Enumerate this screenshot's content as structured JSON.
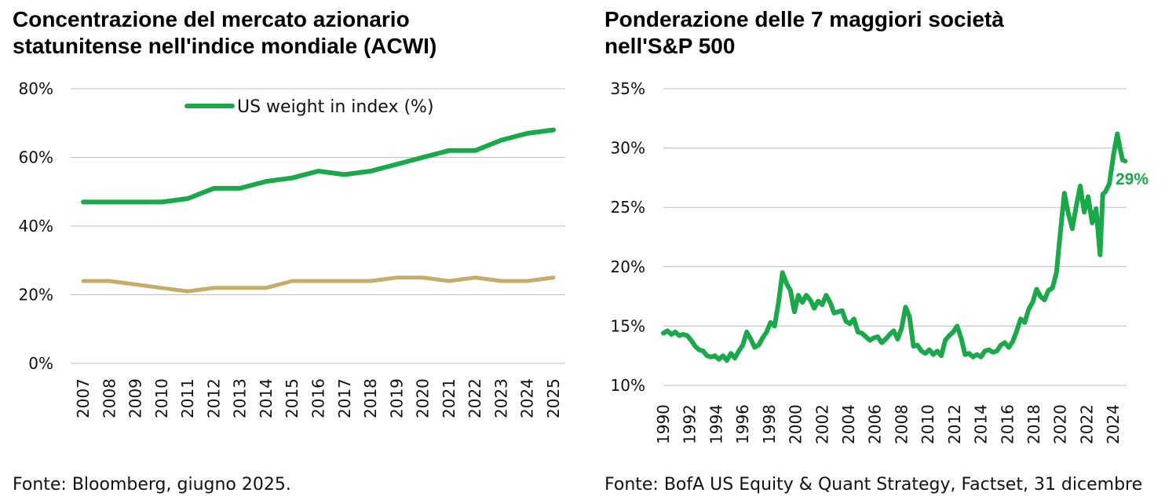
{
  "left": {
    "title_line1": "Concentrazione del mercato azionario",
    "title_line2": "statunitense nell'indice mondiale (ACWI)",
    "source": "Fonte: Bloomberg, giugno 2025."
  },
  "right": {
    "title_line1": "Ponderazione delle 7 maggiori società",
    "title_line2": "nell'S&P 500",
    "source": "Fonte: BofA US Equity & Quant Strategy, Factset, 31 dicembre"
  },
  "colors": {
    "green": "#1aa84a",
    "tan": "#c4ad6a",
    "grid": "#bfbfbf"
  },
  "chart_data": [
    {
      "type": "line",
      "title": "Concentrazione del mercato azionario statunitense nell'indice mondiale (ACWI)",
      "categories": [
        "2007",
        "2008",
        "2009",
        "2010",
        "2011",
        "2012",
        "2013",
        "2014",
        "2015",
        "2016",
        "2017",
        "2018",
        "2019",
        "2020",
        "2021",
        "2022",
        "2023",
        "2024",
        "2025"
      ],
      "yticks": [
        "0%",
        "20%",
        "40%",
        "60%",
        "80%"
      ],
      "ylim": [
        0,
        80
      ],
      "grid": true,
      "legend_position": "top-left",
      "series": [
        {
          "name": "US weight in index (%)",
          "color": "#1aa84a",
          "values": [
            47,
            47,
            47,
            47,
            48,
            51,
            51,
            53,
            54,
            56,
            55,
            56,
            58,
            60,
            62,
            62,
            65,
            67,
            68
          ]
        },
        {
          "color": "#c4ad6a",
          "values": [
            24,
            24,
            23,
            22,
            21,
            22,
            22,
            22,
            24,
            24,
            24,
            24,
            25,
            25,
            24,
            25,
            24,
            24,
            25
          ]
        }
      ]
    },
    {
      "type": "line",
      "title": "Ponderazione delle 7 maggiori società nell'S&P 500",
      "xticks": [
        "1990",
        "1992",
        "1994",
        "1996",
        "1998",
        "2000",
        "2002",
        "2004",
        "2006",
        "2008",
        "2010",
        "2012",
        "2014",
        "2016",
        "2018",
        "2020",
        "2022",
        "2024"
      ],
      "xlim": [
        1990,
        2025
      ],
      "yticks": [
        "10%",
        "15%",
        "20%",
        "25%",
        "30%",
        "35%"
      ],
      "ylim": [
        10,
        35
      ],
      "grid": true,
      "annotation": "29%",
      "series": [
        {
          "color": "#1aa84a",
          "x": [
            1990.0,
            1990.3,
            1990.6,
            1990.9,
            1991.2,
            1991.5,
            1991.8,
            1992.1,
            1992.4,
            1992.7,
            1993.0,
            1993.3,
            1993.6,
            1993.9,
            1994.2,
            1994.5,
            1994.8,
            1995.1,
            1995.4,
            1995.7,
            1996.0,
            1996.3,
            1996.6,
            1996.9,
            1997.2,
            1997.5,
            1997.8,
            1998.1,
            1998.4,
            1998.7,
            1999.0,
            1999.3,
            1999.6,
            1999.9,
            2000.2,
            2000.5,
            2000.8,
            2001.1,
            2001.4,
            2001.7,
            2002.0,
            2002.3,
            2002.6,
            2002.9,
            2003.2,
            2003.5,
            2003.8,
            2004.1,
            2004.4,
            2004.7,
            2005.0,
            2005.3,
            2005.6,
            2005.9,
            2006.2,
            2006.5,
            2006.8,
            2007.1,
            2007.4,
            2007.7,
            2008.0,
            2008.3,
            2008.6,
            2008.9,
            2009.2,
            2009.5,
            2009.8,
            2010.1,
            2010.4,
            2010.7,
            2011.0,
            2011.3,
            2011.6,
            2011.9,
            2012.2,
            2012.5,
            2012.8,
            2013.1,
            2013.4,
            2013.7,
            2014.0,
            2014.3,
            2014.6,
            2014.9,
            2015.2,
            2015.5,
            2015.8,
            2016.1,
            2016.4,
            2016.7,
            2017.0,
            2017.3,
            2017.6,
            2017.9,
            2018.2,
            2018.5,
            2018.8,
            2019.1,
            2019.4,
            2019.7,
            2020.0,
            2020.3,
            2020.6,
            2020.9,
            2021.2,
            2021.5,
            2021.8,
            2022.1,
            2022.4,
            2022.7,
            2023.0,
            2023.2,
            2023.4,
            2023.7,
            2024.0,
            2024.3,
            2024.5,
            2024.7,
            2024.9
          ],
          "values": [
            14.4,
            14.6,
            14.3,
            14.5,
            14.2,
            14.3,
            14.2,
            13.8,
            13.3,
            13.0,
            12.9,
            12.5,
            12.4,
            12.5,
            12.2,
            12.5,
            12.1,
            12.7,
            12.3,
            12.9,
            13.4,
            14.5,
            13.9,
            13.2,
            13.4,
            14.0,
            14.5,
            15.3,
            15.0,
            17.0,
            19.5,
            18.6,
            18.0,
            16.2,
            17.6,
            17.0,
            17.6,
            17.2,
            16.5,
            17.1,
            16.8,
            17.6,
            17.0,
            16.1,
            16.2,
            16.3,
            15.4,
            15.2,
            15.6,
            14.5,
            14.4,
            14.1,
            13.8,
            14.0,
            14.1,
            13.6,
            13.9,
            14.3,
            14.6,
            13.9,
            14.8,
            16.6,
            15.8,
            13.3,
            13.4,
            12.9,
            12.7,
            13.0,
            12.6,
            12.9,
            12.5,
            13.8,
            14.2,
            14.5,
            15.0,
            14.0,
            12.6,
            12.7,
            12.4,
            12.6,
            12.4,
            12.9,
            13.0,
            12.8,
            12.9,
            13.4,
            13.6,
            13.2,
            13.7,
            14.6,
            15.6,
            15.3,
            16.4,
            17.0,
            18.1,
            17.5,
            17.2,
            18.0,
            18.2,
            19.5,
            22.9,
            26.2,
            24.5,
            23.2,
            25.1,
            26.8,
            24.6,
            25.9,
            23.7,
            24.9,
            21.0,
            26.1,
            26.3,
            27.0,
            29.3,
            31.2,
            30.0,
            29.0,
            28.9
          ]
        }
      ]
    }
  ]
}
